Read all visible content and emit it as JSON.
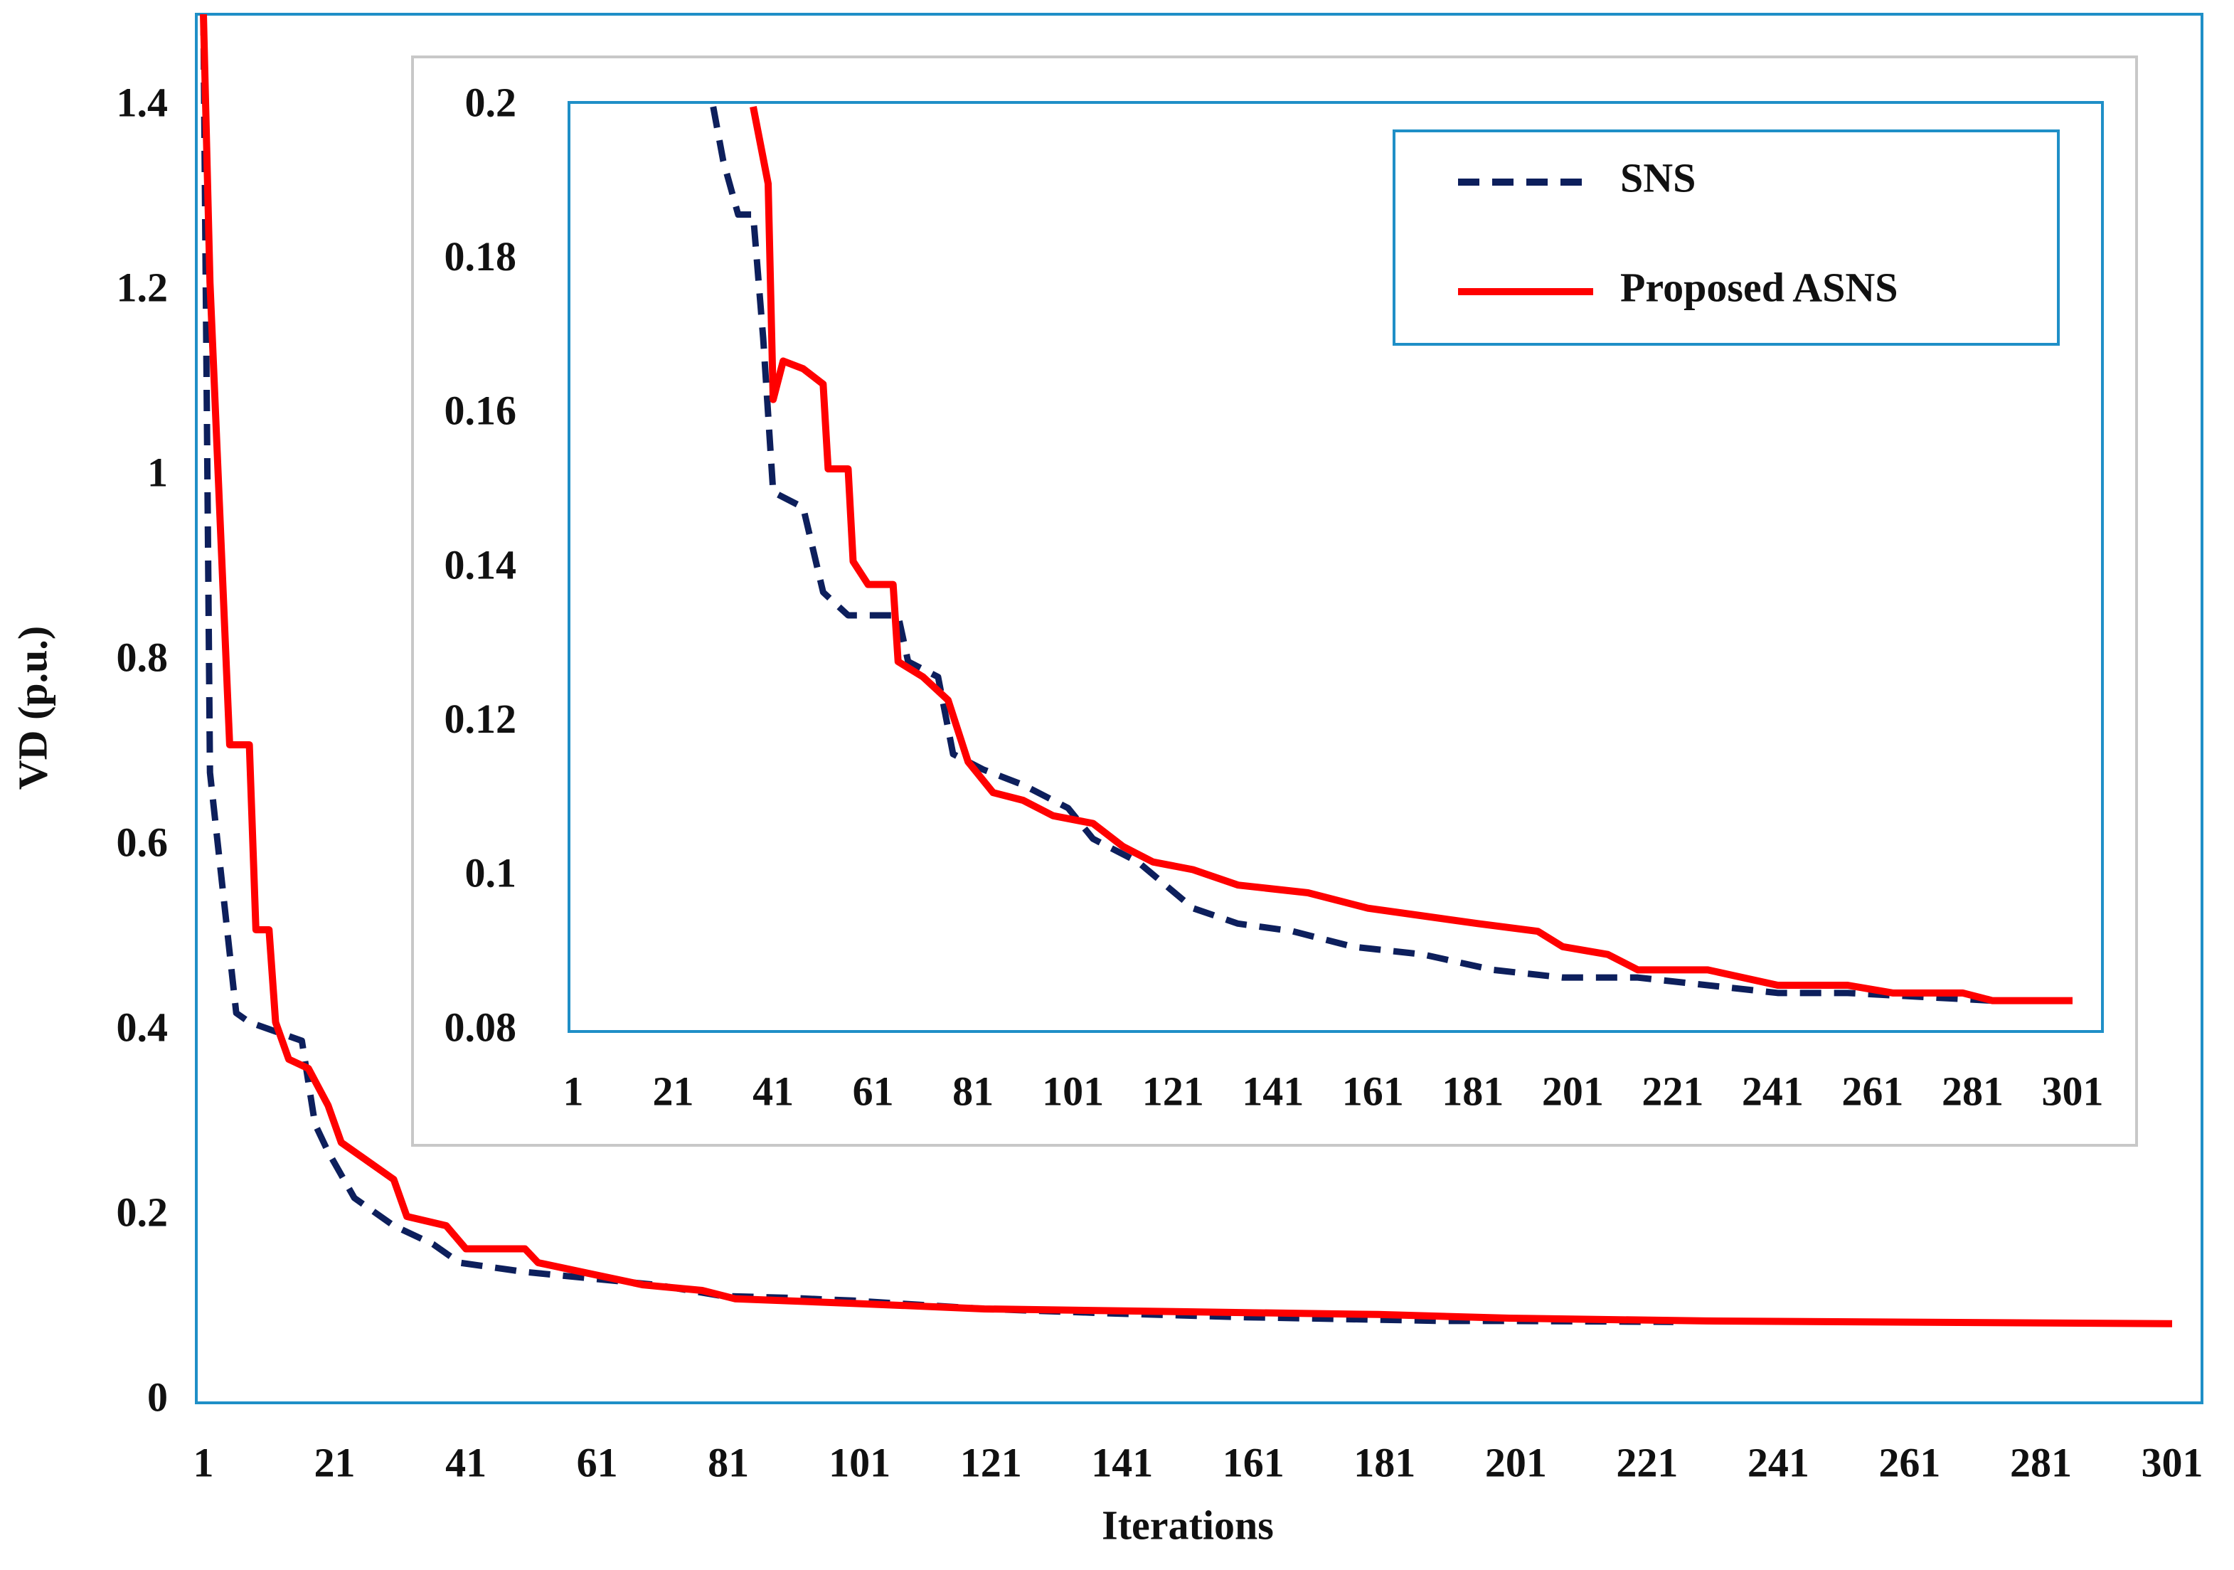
{
  "chart_data": [
    {
      "type": "line",
      "x_label": "Iterations",
      "y_label": "VD (p.u.)",
      "xlim": [
        1,
        301
      ],
      "xticks": [
        1,
        21,
        41,
        61,
        81,
        101,
        121,
        141,
        161,
        181,
        201,
        221,
        241,
        261,
        281,
        301
      ],
      "ylim": [
        0,
        1.5
      ],
      "yticks": [
        0,
        0.2,
        0.4,
        0.6,
        0.8,
        1,
        1.2,
        1.4
      ],
      "series": [
        {
          "color": "#0d1f5c",
          "style": "dashed",
          "x": [
            1,
            2,
            4,
            6,
            8,
            16,
            18,
            20,
            24,
            30,
            36,
            40,
            50,
            60,
            70,
            80,
            90,
            100,
            120,
            140,
            160,
            190,
            200,
            225
          ],
          "values": [
            1.5,
            0.68,
            0.55,
            0.42,
            0.41,
            0.39,
            0.3,
            0.27,
            0.22,
            0.19,
            0.17,
            0.15,
            0.14,
            0.133,
            0.126,
            0.114,
            0.112,
            0.109,
            0.1,
            0.095,
            0.091,
            0.087,
            0.087,
            0.086
          ]
        },
        {
          "color": "#ff0000",
          "style": "solid",
          "x": [
            1,
            2,
            5,
            8,
            9,
            11,
            12,
            14,
            17,
            20,
            22,
            26,
            30,
            32,
            38,
            41,
            50,
            52,
            60,
            68,
            77,
            82,
            100,
            120,
            150,
            180,
            200,
            230,
            301
          ],
          "values": [
            1.5,
            1.21,
            0.71,
            0.71,
            0.51,
            0.51,
            0.41,
            0.37,
            0.36,
            0.32,
            0.28,
            0.26,
            0.24,
            0.2,
            0.19,
            0.165,
            0.165,
            0.15,
            0.138,
            0.126,
            0.12,
            0.111,
            0.106,
            0.1,
            0.097,
            0.094,
            0.09,
            0.087,
            0.084
          ]
        }
      ]
    },
    {
      "type": "line",
      "legend": "upper right",
      "xlim": [
        1,
        301
      ],
      "xticks": [
        1,
        21,
        41,
        61,
        81,
        101,
        121,
        141,
        161,
        181,
        201,
        221,
        241,
        261,
        281,
        301
      ],
      "ylim": [
        0.08,
        0.2
      ],
      "yticks": [
        0.08,
        0.1,
        0.12,
        0.14,
        0.16,
        0.18,
        0.2
      ],
      "series": [
        {
          "name": "SNS",
          "color": "#0d1f5c",
          "style": "dashed",
          "x": [
            29,
            31,
            34,
            37,
            39,
            41,
            47,
            51,
            56,
            66,
            68,
            74,
            77,
            83,
            91,
            100,
            105,
            114,
            125,
            134,
            145,
            157,
            171,
            185,
            199,
            214,
            228,
            242,
            256,
            285
          ],
          "values": [
            0.2,
            0.193,
            0.186,
            0.186,
            0.17,
            0.15,
            0.148,
            0.137,
            0.134,
            0.134,
            0.128,
            0.126,
            0.116,
            0.114,
            0.112,
            0.109,
            0.105,
            0.102,
            0.096,
            0.094,
            0.093,
            0.091,
            0.09,
            0.088,
            0.087,
            0.087,
            0.086,
            0.085,
            0.085,
            0.084
          ]
        },
        {
          "name": "Proposed ASNS",
          "color": "#ff0000",
          "style": "solid",
          "x": [
            37,
            40,
            41,
            43,
            47,
            51,
            52,
            56,
            57,
            60,
            65,
            66,
            71,
            76,
            80,
            85,
            91,
            97,
            105,
            111,
            117,
            125,
            134,
            148,
            160,
            171,
            182,
            194,
            199,
            208,
            214,
            228,
            242,
            256,
            265,
            279,
            285,
            301
          ],
          "values": [
            0.2,
            0.19,
            0.162,
            0.167,
            0.166,
            0.164,
            0.153,
            0.153,
            0.141,
            0.138,
            0.138,
            0.128,
            0.126,
            0.123,
            0.115,
            0.111,
            0.11,
            0.108,
            0.107,
            0.104,
            0.102,
            0.101,
            0.099,
            0.098,
            0.096,
            0.095,
            0.094,
            0.093,
            0.091,
            0.09,
            0.088,
            0.088,
            0.086,
            0.086,
            0.085,
            0.085,
            0.084,
            0.084
          ]
        }
      ]
    }
  ]
}
